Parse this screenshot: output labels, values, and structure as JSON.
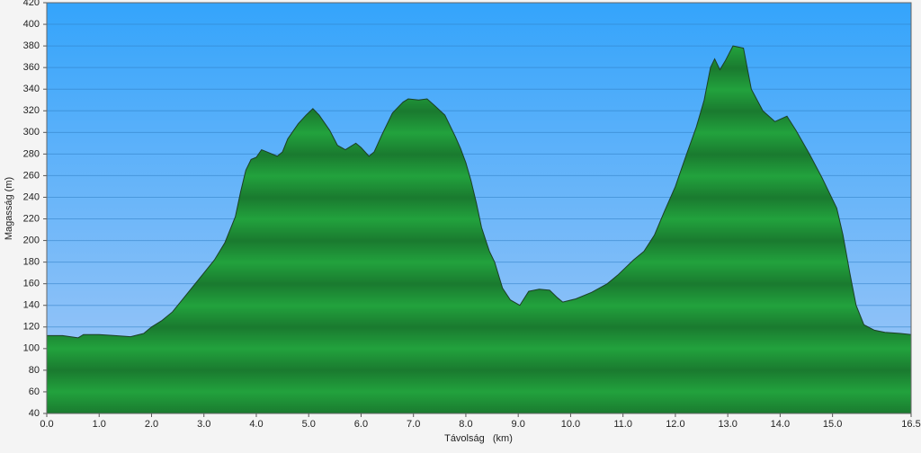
{
  "chart_data": {
    "type": "area",
    "x_label": "Távolság   (km)",
    "y_label": "Magasság (m)",
    "color": "#22a23d",
    "line_color": "#1c3f26",
    "grid": true,
    "x": [
      0,
      0.3,
      0.6,
      0.7,
      1.0,
      1.3,
      1.6,
      1.85,
      2.0,
      2.2,
      2.4,
      2.6,
      2.8,
      3.0,
      3.2,
      3.4,
      3.6,
      3.7,
      3.8,
      3.9,
      4.0,
      4.1,
      4.2,
      4.4,
      4.5,
      4.6,
      4.8,
      4.95,
      5.08,
      5.2,
      5.4,
      5.55,
      5.7,
      5.9,
      6.0,
      6.15,
      6.25,
      6.4,
      6.6,
      6.8,
      6.9,
      7.1,
      7.26,
      7.4,
      7.6,
      7.8,
      7.9,
      8.0,
      8.1,
      8.2,
      8.3,
      8.45,
      8.55,
      8.7,
      8.85,
      9.03,
      9.2,
      9.4,
      9.6,
      9.75,
      9.85,
      10.1,
      10.4,
      10.7,
      10.9,
      11.2,
      11.4,
      11.6,
      11.8,
      12.0,
      12.2,
      12.4,
      12.55,
      12.67,
      12.75,
      12.85,
      12.95,
      13.1,
      13.3,
      13.45,
      13.67,
      13.9,
      14.13,
      14.3,
      14.56,
      14.8,
      15.08,
      15.2,
      15.33,
      15.45,
      15.6,
      15.8,
      16.0,
      16.3,
      16.5
    ],
    "values": [
      112,
      112,
      110,
      113,
      113,
      112,
      111,
      114,
      120,
      126,
      134,
      146,
      158,
      170,
      182,
      198,
      222,
      245,
      265,
      275,
      277,
      284,
      282,
      278,
      282,
      294,
      308,
      316,
      322,
      316,
      302,
      288,
      284,
      290,
      286,
      278,
      282,
      298,
      318,
      328,
      331,
      330,
      331,
      325,
      316,
      296,
      285,
      272,
      255,
      235,
      212,
      190,
      180,
      156,
      145,
      140,
      153,
      155,
      154,
      147,
      143,
      146,
      152,
      160,
      168,
      182,
      190,
      205,
      228,
      250,
      278,
      305,
      330,
      360,
      368,
      358,
      366,
      380,
      378,
      340,
      320,
      310,
      315,
      302,
      280,
      258,
      230,
      205,
      170,
      140,
      122,
      117,
      115,
      114,
      113
    ],
    "xlim": [
      0,
      16.5
    ],
    "ylim": [
      40,
      420
    ],
    "xticks": [
      {
        "value": 0,
        "label": "0.0"
      },
      {
        "value": 1,
        "label": "1.0"
      },
      {
        "value": 2,
        "label": "2.0"
      },
      {
        "value": 3,
        "label": "3.0"
      },
      {
        "value": 4,
        "label": "4.0"
      },
      {
        "value": 5,
        "label": "5.0"
      },
      {
        "value": 6,
        "label": "6.0"
      },
      {
        "value": 7,
        "label": "7.0"
      },
      {
        "value": 8,
        "label": "8.0"
      },
      {
        "value": 9,
        "label": "9.0"
      },
      {
        "value": 10,
        "label": "10.0"
      },
      {
        "value": 11,
        "label": "11.0"
      },
      {
        "value": 12,
        "label": "12.0"
      },
      {
        "value": 13,
        "label": "13.0"
      },
      {
        "value": 14,
        "label": "14.0"
      },
      {
        "value": 15,
        "label": "15.0"
      },
      {
        "value": 16.5,
        "label": "16.5"
      }
    ],
    "yticks": [
      40,
      60,
      80,
      100,
      120,
      140,
      160,
      180,
      200,
      220,
      240,
      260,
      280,
      300,
      320,
      340,
      360,
      380,
      400,
      420
    ]
  }
}
